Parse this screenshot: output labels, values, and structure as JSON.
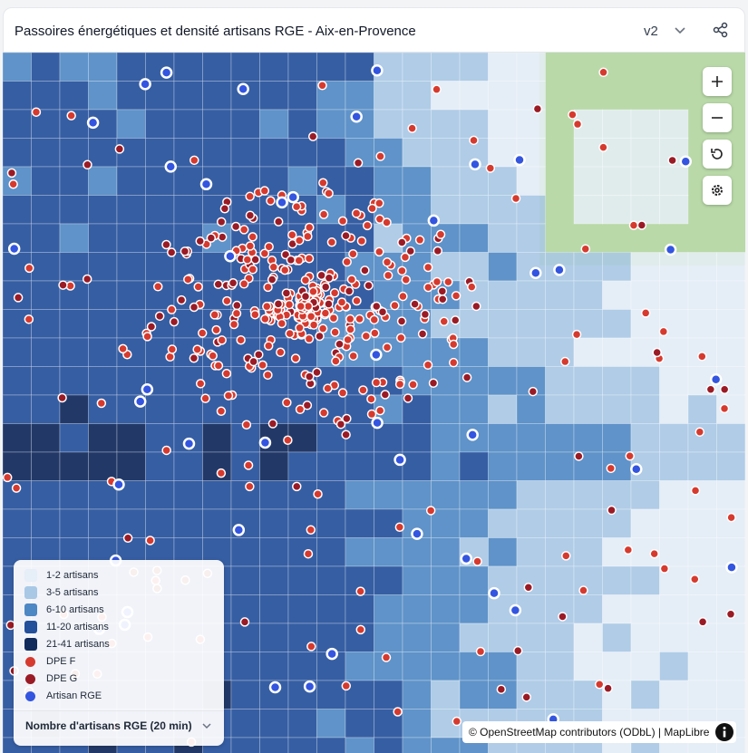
{
  "header": {
    "title": "Passoires énergétiques et densité artisans RGE - Aix-en-Provence",
    "version": "v2"
  },
  "legend": {
    "items": [
      "1-2 artisans",
      "3-5 artisans",
      "6-10 artisans",
      "11-20 artisans",
      "21-41 artisans",
      "DPE F",
      "DPE G",
      "Artisan RGE"
    ],
    "selector": "Nombre d'artisans RGE (20 min)"
  },
  "attribution": "© OpenStreetMap contributors (ODbL) | MapLibre"
}
